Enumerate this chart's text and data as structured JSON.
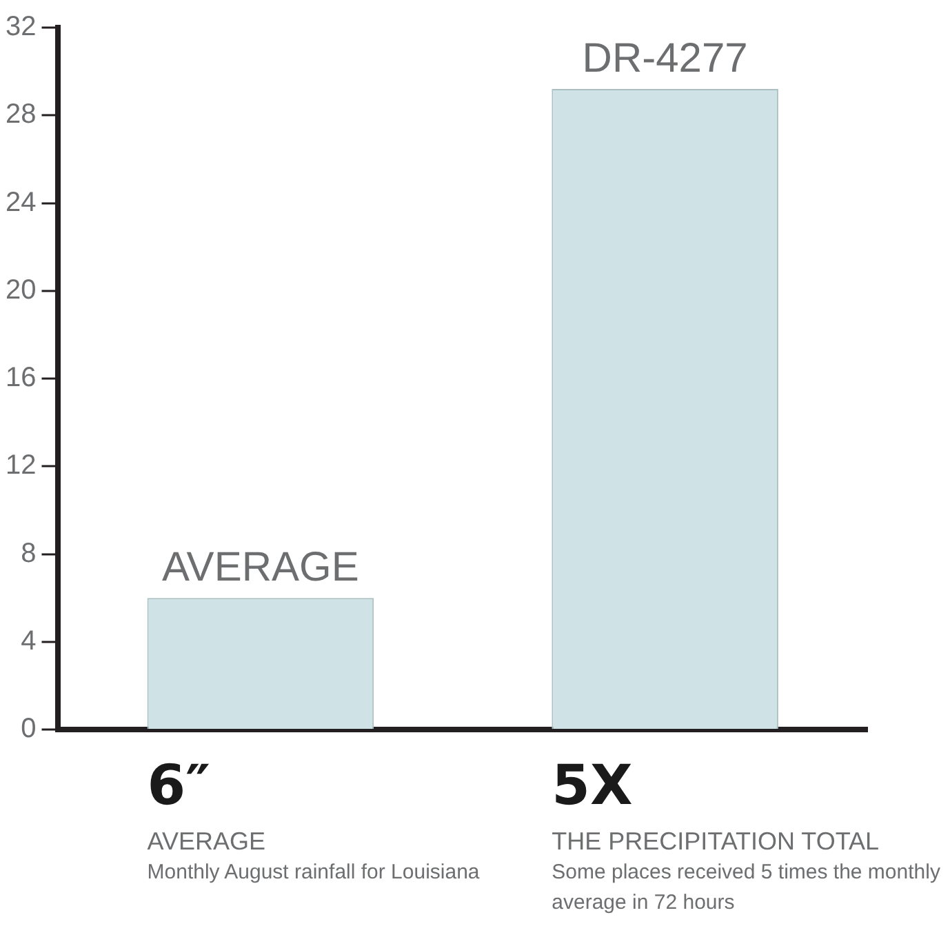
{
  "chart_data": {
    "type": "bar",
    "categories": [
      "AVERAGE",
      "DR-4277"
    ],
    "values": [
      6,
      29.2
    ],
    "color": "#cfe2e5",
    "ylim": [
      0,
      32
    ],
    "yticks": [
      0,
      4,
      8,
      12,
      16,
      20,
      24,
      28,
      32
    ],
    "grid": false,
    "legend": false,
    "annotations": [
      "6″",
      "AVERAGE",
      "Monthly August rainfall for Louisiana",
      "5X",
      "THE PRECIPITATION TOTAL",
      "Some places received 5 times the monthly average in 72 hours"
    ]
  }
}
